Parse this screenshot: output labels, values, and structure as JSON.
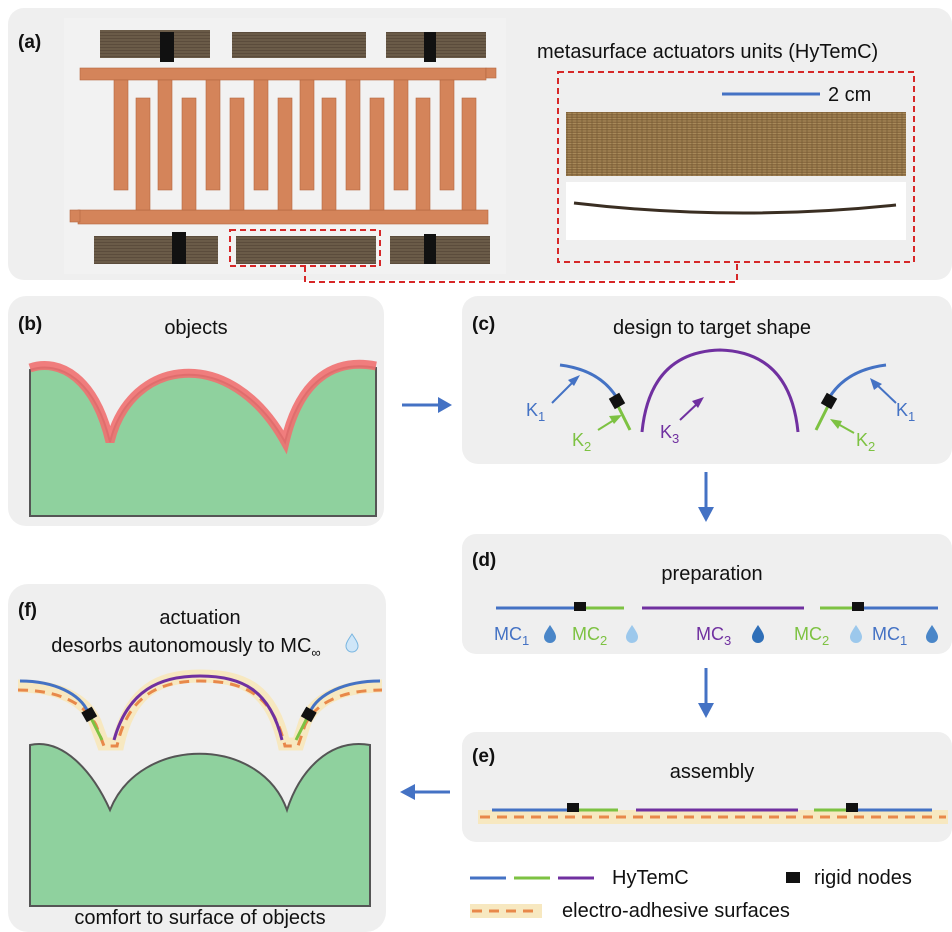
{
  "colors": {
    "panel_bg": "#efefef",
    "object_green": "#8fd19e",
    "object_outline": "#555555",
    "object_highlight": "#f07070",
    "k1_blue": "#4472c4",
    "k2_green": "#7dc242",
    "k3_purple": "#7030a0",
    "rigid_node": "#111111",
    "adhesive_fill": "#f7e8c0",
    "adhesive_dash": "#e8884a",
    "arrow_blue": "#4472c4",
    "connector_red": "#d62728",
    "copper": "#d9875a",
    "actuator_brown": "#5a4a3a"
  },
  "panel_a": {
    "label": "(a)",
    "title": "metasurface actuators units (HyTemC)",
    "scale_bar": "2 cm"
  },
  "panel_b": {
    "label": "(b)",
    "title": "objects"
  },
  "panel_c": {
    "label": "(c)",
    "title": "design to target shape",
    "k1": {
      "main": "K",
      "sub": "1"
    },
    "k2": {
      "main": "K",
      "sub": "2"
    },
    "k3": {
      "main": "K",
      "sub": "3"
    }
  },
  "panel_d": {
    "label": "(d)",
    "title": "preparation",
    "mc1": {
      "main": "MC",
      "sub": "1"
    },
    "mc2": {
      "main": "MC",
      "sub": "2"
    },
    "mc3": {
      "main": "MC",
      "sub": "3"
    }
  },
  "panel_e": {
    "label": "(e)",
    "title": "assembly"
  },
  "panel_f": {
    "label": "(f)",
    "title": "actuation",
    "subtitle_main": "desorbs autonomously to MC",
    "subtitle_sub": "∞",
    "caption": "comfort to surface of objects"
  },
  "legend": {
    "hytemc": "HyTemC",
    "rigid_nodes": "rigid nodes",
    "adhesive": "electro-adhesive surfaces"
  }
}
